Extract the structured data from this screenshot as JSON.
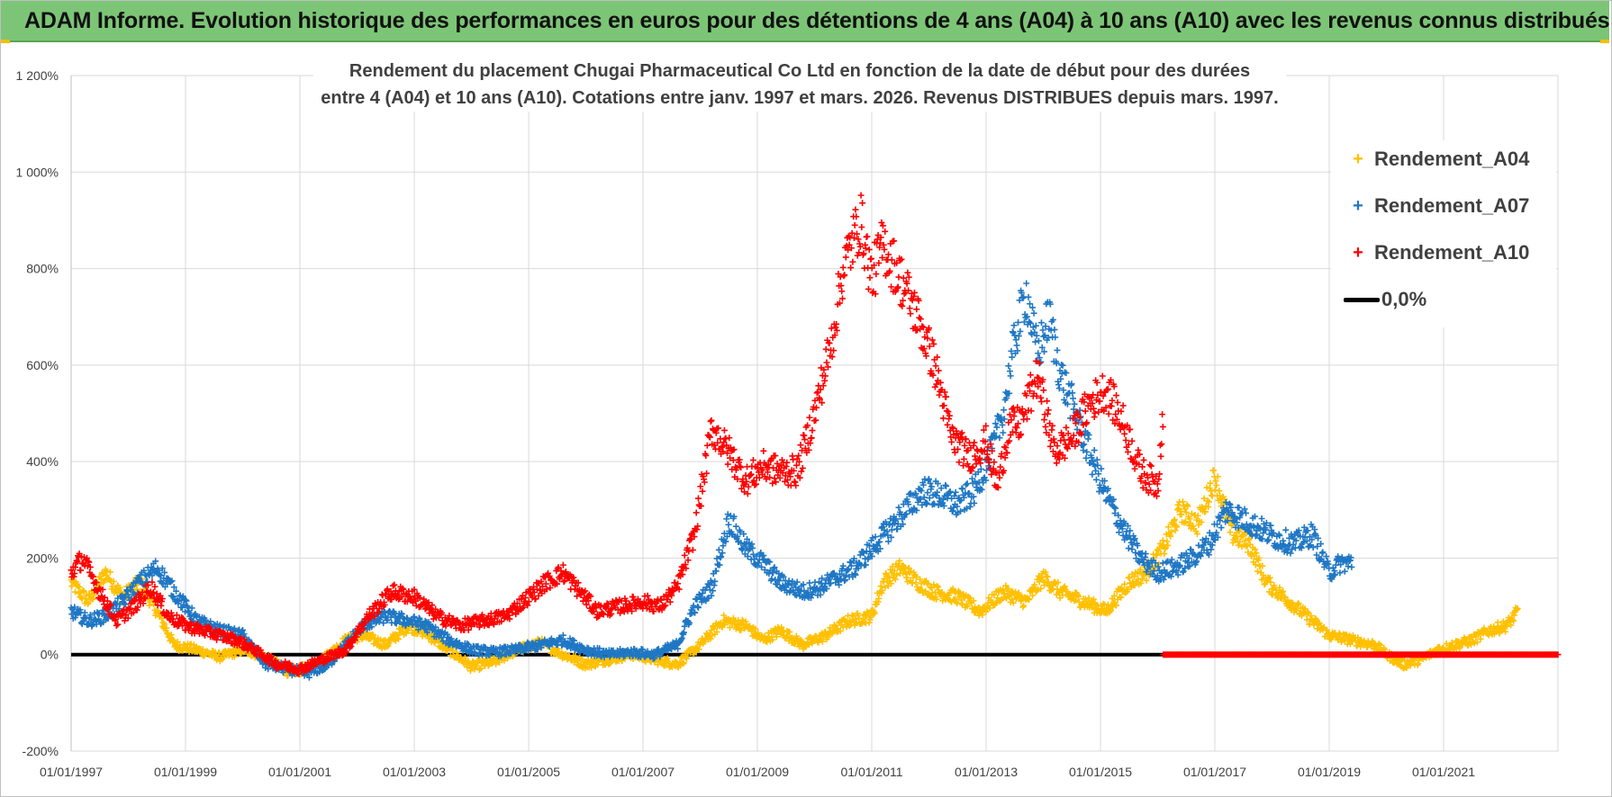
{
  "banner": {
    "title": "ADAM Informe. Evolution historique des performances en euros pour des détentions de 4 ans (A04) à 10 ans (A10) avec les revenus connus distribués"
  },
  "chart_data": {
    "type": "scatter",
    "title_line1": "Rendement du placement Chugai Pharmaceutical Co Ltd en fonction de la date de début pour des durées",
    "title_line2": "entre 4 (A04) et 10 ans (A10).  Cotations entre janv. 1997 et mars. 2026. Revenus DISTRIBUES depuis mars. 1997.",
    "x_start": 1997.0,
    "x_end": 2023.0,
    "ylim": [
      -200,
      1200
    ],
    "ytick_step": 200,
    "y_tick_labels": [
      "1 200%",
      "1 000%",
      "800%",
      "600%",
      "400%",
      "200%",
      "0%",
      "-200%"
    ],
    "x_tick_labels": [
      "01/01/1997",
      "01/01/1999",
      "01/01/2001",
      "01/01/2003",
      "01/01/2005",
      "01/01/2007",
      "01/01/2009",
      "01/01/2011",
      "01/01/2013",
      "01/01/2015",
      "01/01/2017",
      "01/01/2019",
      "01/01/2021"
    ],
    "x_tick_years": [
      1997,
      1999,
      2001,
      2003,
      2005,
      2007,
      2009,
      2011,
      2013,
      2015,
      2017,
      2019,
      2021
    ],
    "legend": [
      "Rendement_A04",
      "Rendement_A07",
      "Rendement_A10",
      "0,0%"
    ],
    "series": [
      {
        "name": "Rendement_A04",
        "color": "#ffc000",
        "x_end": 2022.3,
        "x": [
          1997.0,
          1997.3,
          1997.6,
          1997.9,
          1998.2,
          1998.5,
          1998.8,
          1999.2,
          1999.6,
          2000.0,
          2000.4,
          2000.8,
          2001.1,
          2001.5,
          2001.8,
          2002.1,
          2002.5,
          2002.9,
          2003.2,
          2003.6,
          2004.0,
          2004.4,
          2004.8,
          2005.2,
          2005.6,
          2006.0,
          2006.4,
          2006.8,
          2007.2,
          2007.6,
          2008.0,
          2008.4,
          2008.8,
          2009.1,
          2009.4,
          2009.8,
          2010.2,
          2010.6,
          2011.0,
          2011.2,
          2011.5,
          2011.8,
          2012.1,
          2012.5,
          2012.9,
          2013.3,
          2013.7,
          2014.0,
          2014.3,
          2014.7,
          2015.1,
          2015.5,
          2015.8,
          2016.1,
          2016.4,
          2016.7,
          2017.0,
          2017.3,
          2017.6,
          2017.9,
          2018.2,
          2018.6,
          2019.0,
          2019.4,
          2019.8,
          2020.0,
          2020.3,
          2020.6,
          2020.9,
          2021.2,
          2021.5,
          2021.8,
          2022.1,
          2022.3
        ],
        "y": [
          150,
          110,
          170,
          120,
          150,
          90,
          20,
          10,
          -5,
          10,
          -5,
          -35,
          -30,
          0,
          30,
          40,
          20,
          60,
          45,
          10,
          -25,
          -15,
          10,
          25,
          0,
          -20,
          -10,
          0,
          -10,
          -20,
          20,
          70,
          60,
          30,
          50,
          20,
          40,
          70,
          80,
          150,
          180,
          150,
          130,
          120,
          90,
          130,
          110,
          160,
          130,
          110,
          90,
          150,
          170,
          220,
          300,
          270,
          370,
          250,
          230,
          150,
          120,
          80,
          40,
          30,
          20,
          0,
          -20,
          -10,
          10,
          20,
          30,
          50,
          60,
          90
        ]
      },
      {
        "name": "Rendement_A07",
        "color": "#1f77c4",
        "x_end": 2019.4,
        "x": [
          1997.0,
          1997.3,
          1997.6,
          1997.9,
          1998.2,
          1998.5,
          1998.8,
          1999.2,
          1999.6,
          2000.0,
          2000.4,
          2000.8,
          2001.1,
          2001.5,
          2001.8,
          2002.1,
          2002.5,
          2002.9,
          2003.2,
          2003.6,
          2004.0,
          2004.4,
          2004.8,
          2005.2,
          2005.6,
          2006.0,
          2006.4,
          2006.8,
          2007.2,
          2007.6,
          2007.9,
          2008.2,
          2008.5,
          2008.8,
          2009.1,
          2009.4,
          2009.8,
          2010.1,
          2010.4,
          2010.7,
          2011.0,
          2011.3,
          2011.6,
          2011.9,
          2012.2,
          2012.5,
          2012.8,
          2013.1,
          2013.3,
          2013.5,
          2013.7,
          2013.9,
          2014.1,
          2014.3,
          2014.5,
          2014.8,
          2015.1,
          2015.4,
          2015.7,
          2016.0,
          2016.3,
          2016.6,
          2016.9,
          2017.2,
          2017.5,
          2017.8,
          2018.1,
          2018.4,
          2018.7,
          2019.0,
          2019.2,
          2019.4
        ],
        "y": [
          90,
          70,
          80,
          110,
          150,
          180,
          130,
          70,
          50,
          40,
          -20,
          -30,
          -40,
          -20,
          20,
          60,
          80,
          70,
          60,
          30,
          10,
          5,
          10,
          20,
          30,
          10,
          0,
          5,
          0,
          20,
          100,
          140,
          280,
          220,
          190,
          150,
          130,
          140,
          160,
          180,
          220,
          260,
          300,
          340,
          330,
          310,
          340,
          420,
          500,
          650,
          750,
          620,
          700,
          580,
          520,
          420,
          330,
          260,
          200,
          170,
          180,
          200,
          230,
          300,
          280,
          260,
          240,
          230,
          250,
          170,
          190,
          190
        ]
      },
      {
        "name": "Rendement_A10",
        "color": "#ff0000",
        "x_end": 2016.1,
        "x": [
          1997.0,
          1997.2,
          1997.5,
          1997.8,
          1998.1,
          1998.4,
          1998.7,
          1999.0,
          1999.3,
          1999.6,
          1999.9,
          2000.2,
          2000.6,
          2001.0,
          2001.4,
          2001.8,
          2002.2,
          2002.6,
          2003.0,
          2003.4,
          2003.8,
          2004.2,
          2004.6,
          2005.0,
          2005.3,
          2005.6,
          2005.9,
          2006.2,
          2006.6,
          2007.0,
          2007.3,
          2007.6,
          2007.9,
          2008.2,
          2008.5,
          2008.8,
          2009.1,
          2009.4,
          2009.7,
          2010.0,
          2010.3,
          2010.5,
          2010.8,
          2011.0,
          2011.2,
          2011.5,
          2011.8,
          2012.1,
          2012.4,
          2012.7,
          2013.0,
          2013.2,
          2013.4,
          2013.6,
          2013.9,
          2014.2,
          2014.5,
          2014.8,
          2015.1,
          2015.4,
          2015.7,
          2016.0,
          2016.1
        ],
        "y": [
          170,
          200,
          130,
          70,
          100,
          140,
          80,
          60,
          50,
          40,
          30,
          10,
          -20,
          -30,
          -10,
          10,
          80,
          130,
          120,
          80,
          60,
          70,
          80,
          120,
          150,
          170,
          130,
          90,
          100,
          110,
          100,
          140,
          250,
          470,
          420,
          360,
          390,
          380,
          380,
          500,
          650,
          800,
          900,
          780,
          850,
          780,
          700,
          600,
          450,
          410,
          440,
          350,
          470,
          480,
          580,
          420,
          450,
          520,
          550,
          480,
          380,
          350,
          520
        ]
      }
    ]
  }
}
